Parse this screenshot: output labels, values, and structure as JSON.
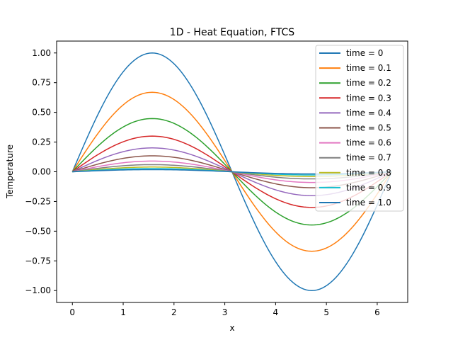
{
  "chart_data": {
    "type": "line",
    "title": "1D - Heat Equation, FTCS",
    "xlabel": "x",
    "ylabel": "Temperature",
    "xlim": [
      -0.31,
      6.6
    ],
    "ylim": [
      -1.1,
      1.1
    ],
    "xticks": [
      "0",
      "1",
      "2",
      "3",
      "4",
      "5",
      "6"
    ],
    "xtick_values": [
      0,
      1,
      2,
      3,
      4,
      5,
      6
    ],
    "yticks": [
      "1.00",
      "0.75",
      "0.50",
      "0.25",
      "0.00",
      "−0.25",
      "−0.50",
      "−0.75",
      "−1.00"
    ],
    "ytick_values": [
      1.0,
      0.75,
      0.5,
      0.25,
      0.0,
      -0.25,
      -0.5,
      -0.75,
      -1.0
    ],
    "grid": false,
    "legend_position": "upper right",
    "x_range": [
      0,
      6.2832
    ],
    "curve_shape": "sin(x)",
    "series": [
      {
        "name": "time = 0",
        "amplitude": 1.0,
        "color": "#1f77b4"
      },
      {
        "name": "time = 0.1",
        "amplitude": 0.669,
        "color": "#ff7f0e"
      },
      {
        "name": "time = 0.2",
        "amplitude": 0.448,
        "color": "#2ca02c"
      },
      {
        "name": "time = 0.3",
        "amplitude": 0.3,
        "color": "#d62728"
      },
      {
        "name": "time = 0.4",
        "amplitude": 0.201,
        "color": "#9467bd"
      },
      {
        "name": "time = 0.5",
        "amplitude": 0.134,
        "color": "#8c564b"
      },
      {
        "name": "time = 0.6",
        "amplitude": 0.09,
        "color": "#e377c2"
      },
      {
        "name": "time = 0.7",
        "amplitude": 0.06,
        "color": "#7f7f7f"
      },
      {
        "name": "time = 0.8",
        "amplitude": 0.04,
        "color": "#bcbd22"
      },
      {
        "name": "time = 0.9",
        "amplitude": 0.027,
        "color": "#17becf"
      },
      {
        "name": "time = 1.0",
        "amplitude": 0.018,
        "color": "#1f77b4"
      }
    ]
  }
}
